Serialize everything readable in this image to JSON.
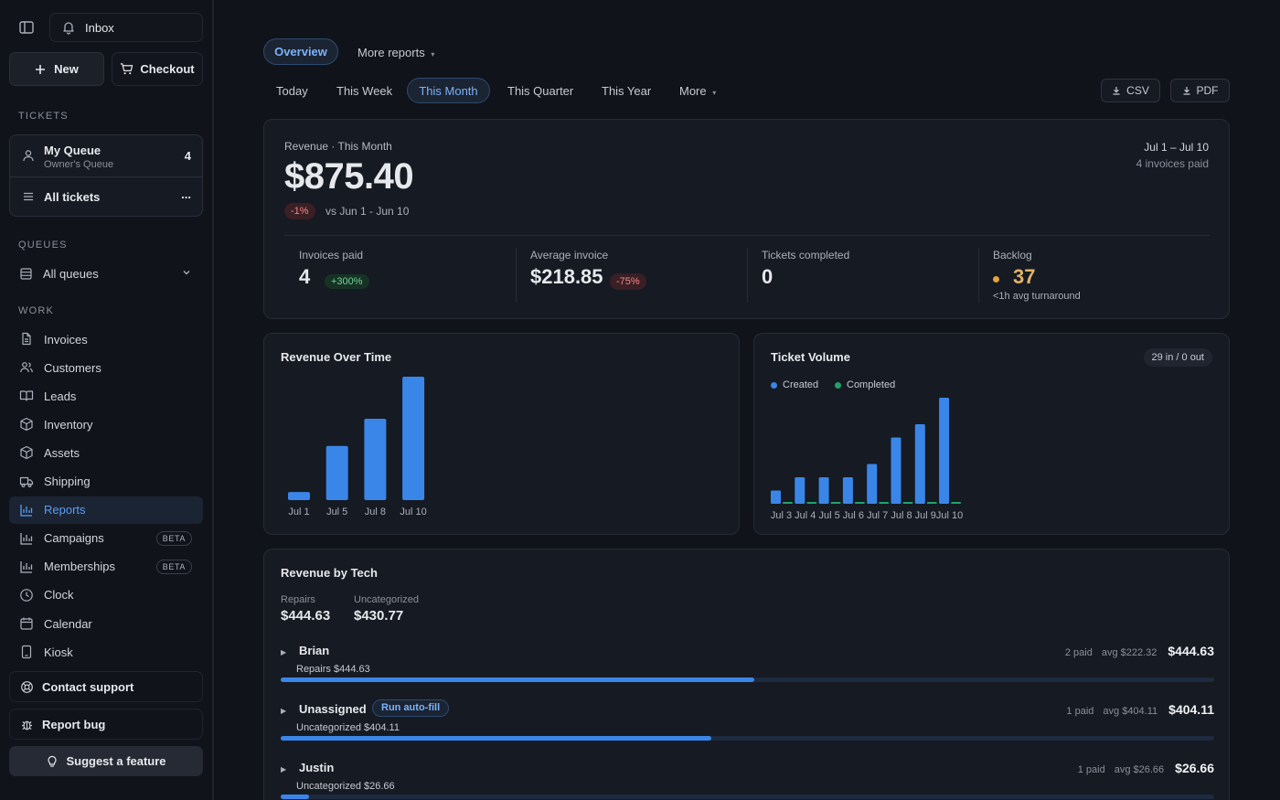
{
  "sidebar": {
    "inbox_label": "Inbox",
    "new_label": "New",
    "checkout_label": "Checkout",
    "tickets_heading": "TICKETS",
    "my_queue": {
      "title": "My Queue",
      "subtitle": "Owner's Queue",
      "count": "4"
    },
    "all_tickets": {
      "label": "All tickets",
      "more": "..."
    },
    "queues_heading": "QUEUES",
    "all_queues_label": "All queues",
    "work_heading": "WORK",
    "items": [
      {
        "label": "Invoices",
        "icon": "file-icon"
      },
      {
        "label": "Customers",
        "icon": "users-icon"
      },
      {
        "label": "Leads",
        "icon": "book-icon"
      },
      {
        "label": "Inventory",
        "icon": "box-icon"
      },
      {
        "label": "Assets",
        "icon": "cube-icon"
      },
      {
        "label": "Shipping",
        "icon": "truck-icon"
      },
      {
        "label": "Reports",
        "icon": "bar-chart-icon",
        "active": true
      },
      {
        "label": "Campaigns",
        "icon": "bar-chart-icon",
        "badge": "BETA"
      },
      {
        "label": "Memberships",
        "icon": "bar-chart-icon",
        "badge": "BETA"
      },
      {
        "label": "Clock",
        "icon": "clock-icon"
      },
      {
        "label": "Calendar",
        "icon": "calendar-icon"
      },
      {
        "label": "Kiosk",
        "icon": "tablet-icon"
      }
    ],
    "contact_support": "Contact support",
    "report_bug": "Report bug",
    "suggest_feature": "Suggest a feature"
  },
  "header": {
    "overview_tab": "Overview",
    "more_reports": "More reports",
    "ranges": [
      "Today",
      "This Week",
      "This Month",
      "This Quarter",
      "This Year",
      "More"
    ],
    "active_range": "This Month",
    "csv_label": "CSV",
    "pdf_label": "PDF"
  },
  "revenue": {
    "label": "Revenue · This Month",
    "amount": "$875.40",
    "change": "-1%",
    "comparison": "vs Jun 1 - Jun 10",
    "period": "Jul 1 – Jul 10",
    "period_sub": "4 invoices paid"
  },
  "kpis": [
    {
      "label": "Invoices paid",
      "value": "4",
      "badge": "+300%",
      "badge_type": "positive"
    },
    {
      "label": "Average invoice",
      "value": "$218.85",
      "badge": "-75%",
      "badge_type": "negative"
    },
    {
      "label": "Tickets completed",
      "value": "0"
    },
    {
      "label": "Backlog",
      "value": "37",
      "sub": "<1h avg turnaround",
      "dot_color": "#e6a23c"
    }
  ],
  "revenue_over_time": {
    "title": "Revenue Over Time",
    "color": "#3a86e8"
  },
  "ticket_volume": {
    "title": "Ticket Volume",
    "badge": "29 in / 0 out",
    "legend_created": "Created",
    "legend_completed": "Completed",
    "created_color": "#3a86e8",
    "completed_color": "#1fa36b"
  },
  "chart_data": [
    {
      "type": "bar",
      "title": "Revenue Over Time",
      "categories": [
        "Jul 1",
        "Jul 5",
        "Jul 8",
        "Jul 10"
      ],
      "values": [
        26.66,
        177.5,
        266.61,
        404.63
      ],
      "ylim": [
        0,
        404.63
      ]
    },
    {
      "type": "bar",
      "title": "Ticket Volume",
      "categories": [
        "Jul 3",
        "Jul 4",
        "Jul 5",
        "Jul 6",
        "Jul 7",
        "Jul 8",
        "Jul 9",
        "Jul 10"
      ],
      "series": [
        {
          "name": "Created",
          "values": [
            1,
            2,
            2,
            2,
            3,
            5,
            6,
            8
          ]
        },
        {
          "name": "Completed",
          "values": [
            0,
            0,
            0,
            0,
            0,
            0,
            0,
            0
          ]
        }
      ],
      "ylim": [
        0,
        8
      ]
    }
  ],
  "revenue_by_tech": {
    "title": "Revenue by Tech",
    "summary": [
      {
        "label": "Repairs",
        "value": "$444.63"
      },
      {
        "label": "Uncategorized",
        "value": "$430.77"
      }
    ],
    "rows": [
      {
        "name": "Brian",
        "sub": "Repairs $444.63",
        "paid": "2 paid",
        "avg": "avg $222.32",
        "total": "$444.63",
        "share": 0.507
      },
      {
        "name": "Unassigned",
        "sub": "Uncategorized $404.11",
        "paid": "1 paid",
        "avg": "avg $404.11",
        "total": "$404.11",
        "share": 0.461,
        "action": "Run auto-fill"
      },
      {
        "name": "Justin",
        "sub": "Uncategorized $26.66",
        "paid": "1 paid",
        "avg": "avg $26.66",
        "total": "$26.66",
        "share": 0.03
      }
    ]
  }
}
